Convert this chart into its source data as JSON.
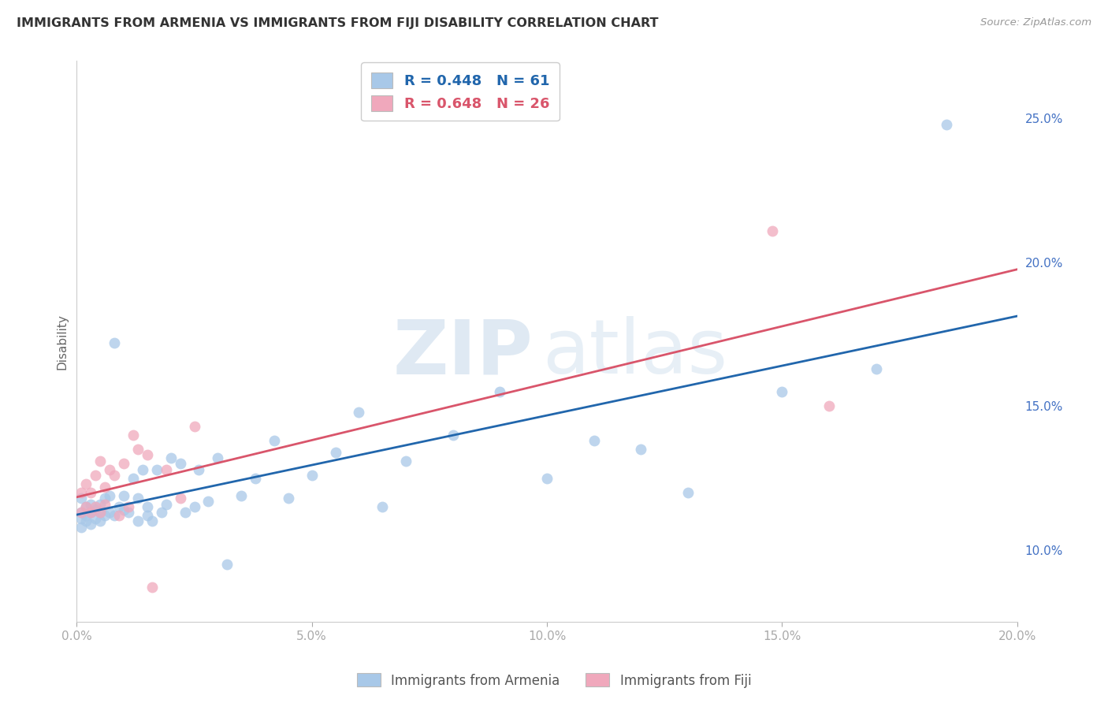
{
  "title": "IMMIGRANTS FROM ARMENIA VS IMMIGRANTS FROM FIJI DISABILITY CORRELATION CHART",
  "source": "Source: ZipAtlas.com",
  "ylabel": "Disability",
  "x_min": 0.0,
  "x_max": 0.2,
  "y_min": 0.075,
  "y_max": 0.27,
  "armenia_R": 0.448,
  "armenia_N": 61,
  "fiji_R": 0.648,
  "fiji_N": 26,
  "blue_color": "#a8c8e8",
  "pink_color": "#f0a8bc",
  "blue_line_color": "#2166ac",
  "pink_line_color": "#d9556b",
  "armenia_x": [
    0.001,
    0.001,
    0.001,
    0.001,
    0.002,
    0.002,
    0.002,
    0.003,
    0.003,
    0.003,
    0.004,
    0.004,
    0.005,
    0.005,
    0.005,
    0.006,
    0.006,
    0.007,
    0.007,
    0.008,
    0.008,
    0.009,
    0.01,
    0.01,
    0.011,
    0.012,
    0.013,
    0.013,
    0.014,
    0.015,
    0.015,
    0.016,
    0.017,
    0.018,
    0.019,
    0.02,
    0.022,
    0.023,
    0.025,
    0.026,
    0.028,
    0.03,
    0.032,
    0.035,
    0.038,
    0.042,
    0.045,
    0.05,
    0.055,
    0.06,
    0.065,
    0.07,
    0.08,
    0.09,
    0.1,
    0.11,
    0.12,
    0.13,
    0.15,
    0.17,
    0.185
  ],
  "armenia_y": [
    0.118,
    0.113,
    0.111,
    0.108,
    0.112,
    0.115,
    0.11,
    0.113,
    0.116,
    0.109,
    0.111,
    0.114,
    0.113,
    0.11,
    0.116,
    0.112,
    0.118,
    0.113,
    0.119,
    0.112,
    0.172,
    0.115,
    0.114,
    0.119,
    0.113,
    0.125,
    0.11,
    0.118,
    0.128,
    0.115,
    0.112,
    0.11,
    0.128,
    0.113,
    0.116,
    0.132,
    0.13,
    0.113,
    0.115,
    0.128,
    0.117,
    0.132,
    0.095,
    0.119,
    0.125,
    0.138,
    0.118,
    0.126,
    0.134,
    0.148,
    0.115,
    0.131,
    0.14,
    0.155,
    0.125,
    0.138,
    0.135,
    0.12,
    0.155,
    0.163,
    0.248
  ],
  "fiji_x": [
    0.001,
    0.001,
    0.002,
    0.002,
    0.003,
    0.003,
    0.004,
    0.004,
    0.005,
    0.005,
    0.006,
    0.006,
    0.007,
    0.008,
    0.009,
    0.01,
    0.011,
    0.012,
    0.013,
    0.015,
    0.016,
    0.019,
    0.022,
    0.025,
    0.148,
    0.16
  ],
  "fiji_y": [
    0.12,
    0.113,
    0.115,
    0.123,
    0.113,
    0.12,
    0.115,
    0.126,
    0.113,
    0.131,
    0.116,
    0.122,
    0.128,
    0.126,
    0.112,
    0.13,
    0.115,
    0.14,
    0.135,
    0.133,
    0.087,
    0.128,
    0.118,
    0.143,
    0.211,
    0.15
  ],
  "watermark_zip": "ZIP",
  "watermark_atlas": "atlas",
  "x_ticks": [
    0.0,
    0.05,
    0.1,
    0.15,
    0.2
  ],
  "x_tick_labels": [
    "0.0%",
    "5.0%",
    "10.0%",
    "15.0%",
    "20.0%"
  ],
  "y_ticks_right": [
    0.1,
    0.15,
    0.2,
    0.25
  ],
  "y_tick_labels_right": [
    "10.0%",
    "15.0%",
    "20.0%",
    "25.0%"
  ],
  "background_color": "#ffffff",
  "grid_color": "#cccccc",
  "legend1_label": "Immigrants from Armenia",
  "legend2_label": "Immigrants from Fiji"
}
